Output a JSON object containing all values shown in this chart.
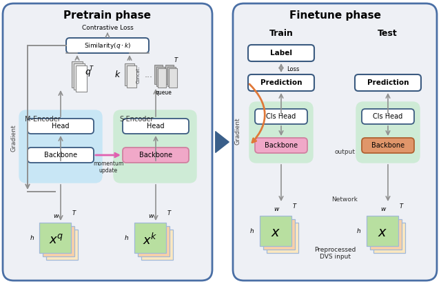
{
  "pretrain_title": "Pretrain phase",
  "finetune_title": "Finetune phase",
  "train_subtitle": "Train",
  "test_subtitle": "Test",
  "panel_bg": "#eef0f5",
  "panel_border": "#4a6fa5",
  "blue_encoder_bg": "#c8e6f5",
  "green_encoder_bg": "#ceebd6",
  "white_box_bg": "#ffffff",
  "white_box_border": "#3a5a80",
  "pink_backbone": "#f0a8c8",
  "orange_backbone": "#e0966a",
  "input_back1": "#fce8c0",
  "input_back2": "#f8d0a8",
  "input_front": "#b8dfa0",
  "input_border": "#a0b8d8",
  "q_stack_colors": [
    "#d8d8d8",
    "#ececec",
    "#ffffff"
  ],
  "queue_colors": [
    "#b8b8b8",
    "#cccccc",
    "#e0e0e0"
  ],
  "arrow_gray": "#909090",
  "arrow_orange": "#e07838",
  "arrow_pink": "#e060b0",
  "big_arrow_color": "#3a5f8a",
  "gradient_text_color": "#444444",
  "label_text_color": "#222222"
}
